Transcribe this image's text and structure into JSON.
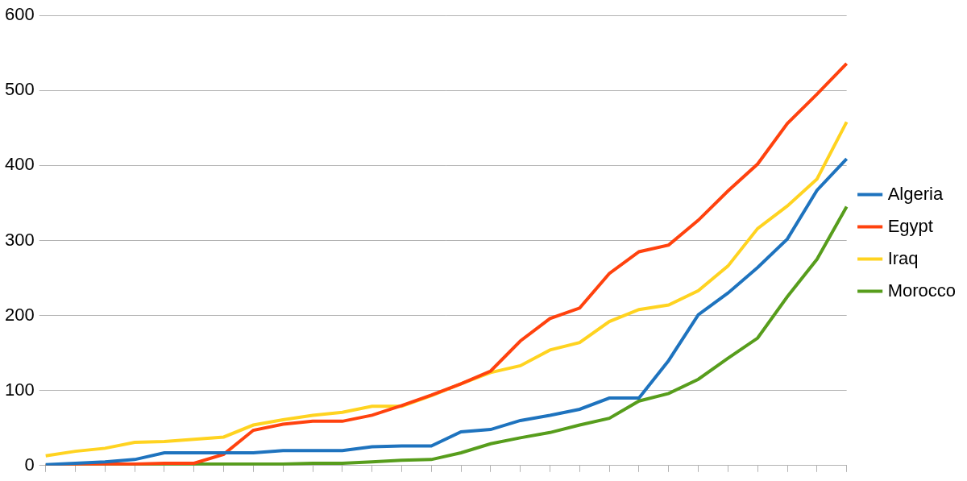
{
  "chart_data": {
    "type": "line",
    "categories": [
      null,
      null,
      null,
      null,
      null,
      null,
      null,
      null,
      null,
      null,
      null,
      null,
      null,
      null,
      null,
      null,
      null,
      null,
      null,
      null,
      null,
      null,
      null,
      null,
      null,
      null,
      null,
      null
    ],
    "series": [
      {
        "name": "Algeria",
        "color": "#1e73be",
        "values": [
          1,
          3,
          5,
          8,
          17,
          17,
          17,
          17,
          20,
          20,
          20,
          25,
          26,
          26,
          45,
          48,
          60,
          67,
          75,
          90,
          90,
          140,
          201,
          230,
          264,
          302,
          367,
          409
        ]
      },
      {
        "name": "Egypt",
        "color": "#ff420e",
        "values": [
          0,
          1,
          2,
          2,
          3,
          3,
          15,
          47,
          55,
          59,
          59,
          67,
          80,
          94,
          109,
          126,
          166,
          196,
          210,
          256,
          285,
          294,
          327,
          366,
          402,
          456,
          495,
          536
        ]
      },
      {
        "name": "Iraq",
        "color": "#ffd320",
        "values": [
          13,
          19,
          23,
          31,
          32,
          35,
          38,
          54,
          61,
          67,
          71,
          79,
          79,
          93,
          109,
          124,
          133,
          154,
          164,
          192,
          208,
          214,
          233,
          266,
          316,
          346,
          382,
          458
        ]
      },
      {
        "name": "Morocco",
        "color": "#579d1c",
        "values": [
          0,
          0,
          0,
          1,
          2,
          2,
          2,
          2,
          2,
          3,
          3,
          5,
          7,
          8,
          17,
          29,
          37,
          44,
          54,
          63,
          86,
          96,
          115,
          143,
          170,
          225,
          275,
          345
        ]
      }
    ],
    "ylim": [
      0,
      600
    ],
    "yticks": [
      0,
      100,
      200,
      300,
      400,
      500,
      600
    ],
    "grid": true,
    "legend": "right",
    "tick_labels": "y"
  }
}
